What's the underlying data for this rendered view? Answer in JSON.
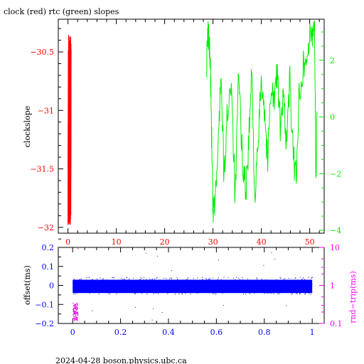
{
  "title": "clock (red) rtc (green) slopes",
  "footer": "2024-04-28  boson.physics.ubc.ca",
  "colors": {
    "axis": "#000000",
    "clock": "#ff0000",
    "rtc": "#00ee00",
    "offset": "#0000ff",
    "roundtrip": "#ff00ff"
  },
  "chart_data": [
    {
      "type": "line",
      "title": "clock (red) rtc (green) slopes",
      "ylabel": "clockslope",
      "xlim": [
        -2,
        53
      ],
      "ylim": [
        -32.05,
        -30.22
      ],
      "xticks": [
        0,
        10,
        20,
        30,
        40,
        50
      ],
      "xticklabels": [
        "0",
        "10",
        "20",
        "30",
        "40",
        "50"
      ],
      "yticks": [
        -30.5,
        -31,
        -31.5,
        -32
      ],
      "yticklabels": [
        "−30.5",
        "−31",
        "−31.5",
        "−32"
      ],
      "y2lim": [
        -4.1,
        3.45
      ],
      "y2ticks": [
        2,
        0,
        -2,
        -4
      ],
      "y2ticklabels": [
        "2",
        "0",
        "−2",
        "−4"
      ],
      "grid": false,
      "series": [
        {
          "key": "clock",
          "axis": "left",
          "x_range": [
            0,
            0.6
          ],
          "y_range": [
            -31.98,
            -30.35
          ],
          "note_points": 60
        },
        {
          "key": "rtc",
          "axis": "right",
          "x_range": [
            28.7,
            51.5
          ],
          "waypoints": [
            [
              28.7,
              2.0
            ],
            [
              29.0,
              3.0
            ],
            [
              29.4,
              2.2
            ],
            [
              29.7,
              -0.5
            ],
            [
              30.0,
              -3.6
            ],
            [
              30.4,
              -2.9
            ],
            [
              31.0,
              -1.5
            ],
            [
              31.6,
              1.6
            ],
            [
              32.3,
              -2.2
            ],
            [
              33.0,
              0.2
            ],
            [
              33.8,
              1.4
            ],
            [
              34.6,
              -3.0
            ],
            [
              35.3,
              1.5
            ],
            [
              36.0,
              -1.2
            ],
            [
              36.8,
              -2.6
            ],
            [
              37.4,
              -0.9
            ],
            [
              38.0,
              1.6
            ],
            [
              38.7,
              -3.0
            ],
            [
              39.4,
              -0.8
            ],
            [
              40.0,
              1.5
            ],
            [
              40.7,
              0.2
            ],
            [
              41.3,
              -1.6
            ],
            [
              42.0,
              1.2
            ],
            [
              42.7,
              0.5
            ],
            [
              43.3,
              1.7
            ],
            [
              44.0,
              -0.6
            ],
            [
              44.6,
              0.8
            ],
            [
              45.2,
              -0.9
            ],
            [
              45.9,
              1.3
            ],
            [
              46.6,
              -1.5
            ],
            [
              47.2,
              -2.0
            ],
            [
              47.9,
              1.0
            ],
            [
              48.6,
              1.8
            ],
            [
              49.3,
              2.0
            ],
            [
              49.9,
              2.6
            ],
            [
              50.5,
              3.0
            ],
            [
              51.0,
              3.4
            ],
            [
              51.3,
              -2.6
            ],
            [
              51.5,
              0.2
            ]
          ]
        }
      ]
    },
    {
      "type": "scatter",
      "ylabel": "offset(ms)",
      "y2label": "rnd−trip(ms)",
      "xlim": [
        -0.06,
        1.05
      ],
      "ylim": [
        -0.2,
        0.2
      ],
      "xticks": [
        0,
        0.2,
        0.4,
        0.6,
        0.8,
        1
      ],
      "xticklabels": [
        "0",
        "0.2",
        "0.4",
        "0.6",
        "0.8",
        "1"
      ],
      "yticks": [
        0.2,
        0.1,
        0,
        -0.1,
        -0.2
      ],
      "yticklabels": [
        "0.2",
        "0.1",
        "0",
        "−0.1",
        "−0.2"
      ],
      "y2scale": "log",
      "y2lim": [
        0.1,
        10
      ],
      "y2ticks": [
        10,
        1,
        0.1
      ],
      "y2ticklabels": [
        "10",
        "1",
        "0.1"
      ],
      "grid": false,
      "series": [
        {
          "key": "offset",
          "axis": "left",
          "x_range": [
            0,
            1
          ],
          "y_band": [
            -0.045,
            0.045
          ]
        },
        {
          "key": "roundtrip",
          "axis": "right",
          "x_range": [
            0,
            0.02
          ],
          "y_range": [
            0.12,
            0.35
          ]
        }
      ]
    }
  ]
}
